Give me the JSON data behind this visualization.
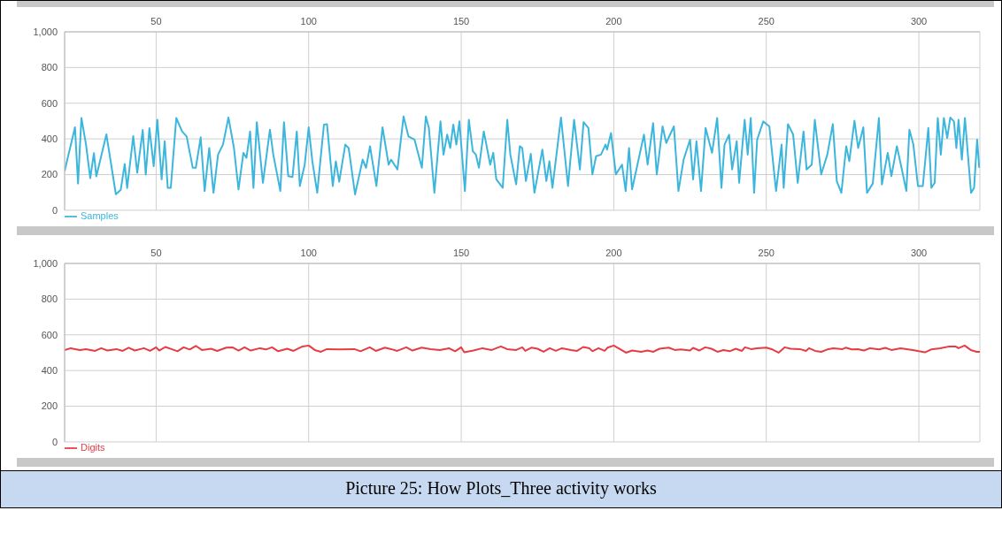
{
  "chart_data": [
    {
      "type": "line",
      "xlim": [
        20,
        320
      ],
      "xticks": [
        50,
        100,
        150,
        200,
        250,
        300
      ],
      "ylim": [
        0,
        1000
      ],
      "yticks": [
        0,
        200,
        400,
        600,
        800,
        {
          "value": 1000,
          "label": "1,000"
        }
      ],
      "grid": true,
      "legend": "bottom left",
      "marker": "none",
      "line_style": "solid",
      "series": [
        {
          "name": "Samples",
          "color": "#3cb6dc",
          "x": [
            20,
            23.4,
            24.4,
            25.5,
            27,
            28.4,
            29.6,
            30.4,
            33.7,
            36.8,
            38.4,
            39.7,
            40.5,
            42.5,
            43.8,
            45.6,
            46.6,
            47.8,
            49.2,
            50.4,
            51.8,
            52.8,
            53.8,
            54.8,
            56.6,
            58.5,
            60,
            62,
            63,
            64.6,
            65.9,
            67.4,
            68.8,
            70.3,
            71.9,
            73.7,
            75.5,
            77,
            78.6,
            79.6,
            80.8,
            81.9,
            83,
            85,
            87.3,
            88.4,
            90.7,
            91.9,
            93.3,
            94.7,
            96.1,
            97.1,
            98.7,
            100,
            101.2,
            102.8,
            105,
            106,
            107.9,
            108.9,
            110,
            112,
            113.1,
            115.2,
            117.7,
            118.8,
            120.1,
            122.2,
            124.2,
            126.2,
            127,
            129.1,
            131.1,
            132.7,
            134.7,
            137.1,
            138.4,
            139.4,
            141.2,
            143.2,
            144.2,
            145.4,
            146.4,
            147.4,
            148.4,
            149.4,
            151.2,
            152.5,
            153.8,
            154.8,
            155.8,
            157.4,
            159.5,
            160.5,
            161.5,
            163.6,
            165.1,
            166.1,
            168,
            169.2,
            170,
            171.2,
            172.8,
            174,
            176.6,
            177.9,
            178.9,
            179.9,
            182.7,
            185,
            187,
            188.9,
            190.1,
            191.7,
            193,
            194.2,
            195.8,
            197.3,
            197.8,
            199.1,
            200.7,
            202.7,
            203.9,
            205,
            206,
            209.9,
            211.1,
            212.9,
            214.1,
            216,
            217.2,
            219.7,
            221.2,
            222.9,
            225,
            226,
            227.1,
            228.6,
            230.1,
            232.2,
            233.9,
            235.3,
            236.3,
            237.8,
            238.8,
            240.3,
            241.1,
            242.9,
            243.9,
            244.9,
            246,
            247,
            249,
            251,
            253.2,
            255,
            255.7,
            257.1,
            258.8,
            260.3,
            262.2,
            263.2,
            264.9,
            265.9,
            268,
            270,
            271.8,
            273.1,
            274.6,
            276.2,
            277.2,
            278.9,
            280.1,
            281.8,
            283,
            284.9,
            286.9,
            287.9,
            289.8,
            291,
            292.8,
            294.1,
            295.9,
            296.9,
            298.2,
            299.7,
            301.3,
            303.1,
            304.1,
            305.2,
            306.2,
            307.2,
            308.2,
            309.3,
            310.3,
            311.5,
            312.3,
            313,
            314.1,
            315.1,
            317.1,
            318.1,
            319.1,
            319.8
          ],
          "values": [
            220,
            465,
            150,
            517,
            370,
            180,
            320,
            190,
            425,
            90,
            115,
            260,
            125,
            415,
            210,
            450,
            200,
            460,
            247,
            507,
            173,
            387,
            126,
            126,
            517,
            442,
            414,
            238,
            238,
            409,
            108,
            349,
            98,
            312,
            368,
            520,
            350,
            117,
            322,
            294,
            442,
            126,
            494,
            154,
            452,
            312,
            108,
            494,
            191,
            186,
            442,
            136,
            256,
            465,
            275,
            98,
            480,
            483,
            136,
            275,
            160,
            368,
            349,
            89,
            284,
            238,
            359,
            136,
            465,
            256,
            284,
            229,
            526,
            414,
            396,
            238,
            526,
            461,
            98,
            498,
            312,
            424,
            349,
            480,
            368,
            498,
            108,
            507,
            331,
            312,
            238,
            442,
            256,
            322,
            173,
            126,
            507,
            312,
            145,
            359,
            349,
            164,
            316,
            98,
            340,
            164,
            275,
            126,
            520,
            136,
            507,
            229,
            494,
            461,
            201,
            303,
            312,
            368,
            340,
            433,
            201,
            256,
            108,
            349,
            117,
            424,
            256,
            489,
            201,
            470,
            377,
            470,
            108,
            284,
            396,
            173,
            387,
            108,
            461,
            322,
            517,
            126,
            368,
            424,
            229,
            387,
            154,
            507,
            312,
            517,
            98,
            396,
            498,
            470,
            108,
            368,
            126,
            483,
            424,
            154,
            442,
            229,
            256,
            507,
            201,
            312,
            483,
            164,
            98,
            359,
            275,
            502,
            349,
            465,
            98,
            150,
            517,
            145,
            322,
            191,
            359,
            256,
            108,
            452,
            368,
            136,
            136,
            461,
            126,
            154,
            517,
            312,
            517,
            405,
            520,
            498,
            349,
            507,
            284,
            517,
            98,
            126,
            396,
            238
          ]
        }
      ]
    },
    {
      "type": "line",
      "xlim": [
        20,
        320
      ],
      "xticks": [
        50,
        100,
        150,
        200,
        250,
        300
      ],
      "ylim": [
        0,
        1000
      ],
      "yticks": [
        0,
        200,
        400,
        600,
        800,
        {
          "value": 1000,
          "label": "1,000"
        }
      ],
      "grid": true,
      "legend": "bottom left",
      "marker": "none",
      "line_style": "solid",
      "annotations": [
        "Picture 25: How Plots_Three activity works"
      ],
      "series": [
        {
          "name": "Digits",
          "color": "#e63c44",
          "x": [
            20,
            22,
            25,
            27,
            30,
            32,
            34,
            37,
            39,
            41,
            43,
            46,
            48,
            50,
            51,
            53,
            55,
            57,
            59,
            61,
            63,
            65,
            68,
            70,
            73,
            75,
            77,
            79,
            81,
            84,
            86,
            88,
            90,
            93,
            95,
            98,
            100,
            102,
            104,
            106,
            110,
            115,
            117,
            120,
            122,
            125,
            127,
            129,
            132,
            134,
            137,
            140,
            143,
            146,
            148,
            150,
            151,
            154,
            157,
            160,
            163,
            165,
            168,
            170,
            171,
            173,
            175,
            177,
            179,
            181,
            183,
            186,
            188,
            190,
            192,
            193,
            195,
            197,
            198,
            200,
            202,
            204,
            206,
            209,
            211,
            213,
            215,
            218,
            220,
            222,
            225,
            226,
            228,
            230,
            232,
            234,
            236,
            238,
            240,
            242,
            243,
            245,
            247,
            250,
            252,
            254,
            256,
            258,
            261,
            263,
            264,
            266,
            268,
            270,
            272,
            275,
            276,
            278,
            280,
            282,
            284,
            287,
            289,
            291,
            294,
            296,
            298,
            300,
            302,
            304,
            307,
            310,
            312,
            313,
            315,
            317,
            319,
            320
          ],
          "values": [
            515,
            525,
            515,
            520,
            510,
            525,
            512,
            520,
            510,
            528,
            512,
            525,
            510,
            530,
            512,
            532,
            520,
            508,
            530,
            518,
            538,
            515,
            522,
            510,
            528,
            530,
            512,
            530,
            512,
            525,
            518,
            530,
            508,
            522,
            510,
            535,
            540,
            515,
            505,
            520,
            518,
            520,
            508,
            530,
            510,
            528,
            520,
            510,
            530,
            512,
            528,
            520,
            515,
            525,
            508,
            530,
            502,
            512,
            525,
            515,
            535,
            520,
            515,
            530,
            510,
            528,
            522,
            505,
            525,
            510,
            525,
            515,
            510,
            532,
            525,
            508,
            525,
            510,
            528,
            540,
            520,
            500,
            512,
            505,
            512,
            505,
            522,
            528,
            515,
            518,
            512,
            527,
            512,
            530,
            522,
            505,
            515,
            508,
            522,
            510,
            530,
            520,
            525,
            528,
            518,
            500,
            530,
            522,
            520,
            510,
            525,
            510,
            505,
            518,
            525,
            520,
            528,
            518,
            520,
            512,
            525,
            518,
            527,
            515,
            525,
            520,
            515,
            508,
            502,
            518,
            525,
            535,
            535,
            525,
            540,
            515,
            505,
            505
          ]
        }
      ]
    }
  ]
}
